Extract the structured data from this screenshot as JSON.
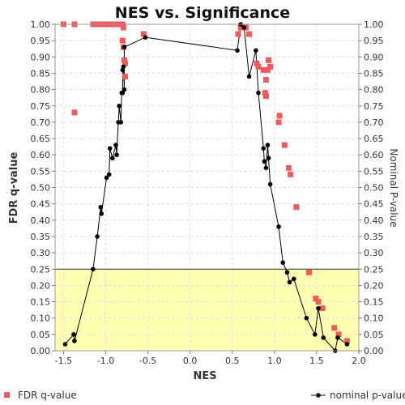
{
  "chart_data": {
    "type": "scatter",
    "title": "NES vs. Significance",
    "xlabel": "NES",
    "ylabel_left": "FDR q-value",
    "ylabel_right": "Nominal P-value",
    "xlim": [
      -1.6,
      2.0
    ],
    "ylim": [
      0.0,
      1.0
    ],
    "x_ticks": [
      "-1.5",
      "-1.0",
      "-0.5",
      "0.0",
      "0.5",
      "1.0",
      "1.5",
      "2.0"
    ],
    "y_ticks": [
      "0.00",
      "0.05",
      "0.10",
      "0.15",
      "0.20",
      "0.25",
      "0.30",
      "0.35",
      "0.40",
      "0.45",
      "0.50",
      "0.55",
      "0.60",
      "0.65",
      "0.70",
      "0.75",
      "0.80",
      "0.85",
      "0.90",
      "0.95",
      "1.00"
    ],
    "grid": true,
    "highlight_band": {
      "y_from": 0.0,
      "y_to": 0.25,
      "color": "#ffffb0",
      "edge_color": "#2e2e2e"
    },
    "legend": [
      {
        "label": "FDR q-value",
        "marker": "square",
        "color": "#f05a5a"
      },
      {
        "label": "nominal p-value",
        "marker": "line-dot",
        "color": "#000000"
      }
    ],
    "series": [
      {
        "name": "FDR q-value",
        "marker": "square",
        "color": "#f05a5a",
        "points": [
          [
            -1.5,
            1.0
          ],
          [
            -1.37,
            1.0
          ],
          [
            -1.37,
            0.73
          ],
          [
            -1.15,
            1.0
          ],
          [
            -1.12,
            1.0
          ],
          [
            -1.08,
            1.0
          ],
          [
            -1.04,
            1.0
          ],
          [
            -1.0,
            1.0
          ],
          [
            -0.96,
            1.0
          ],
          [
            -0.92,
            1.0
          ],
          [
            -0.88,
            1.0
          ],
          [
            -0.84,
            1.0
          ],
          [
            -0.8,
            1.0
          ],
          [
            -0.79,
            0.99
          ],
          [
            -0.8,
            0.95
          ],
          [
            -0.79,
            0.93
          ],
          [
            -0.78,
            0.89
          ],
          [
            -0.77,
            0.88
          ],
          [
            -0.77,
            0.84
          ],
          [
            -0.55,
            0.97
          ],
          [
            0.57,
            0.97
          ],
          [
            0.6,
            0.99
          ],
          [
            0.63,
            0.99
          ],
          [
            0.66,
            0.99
          ],
          [
            0.7,
            0.97
          ],
          [
            0.79,
            0.88
          ],
          [
            0.81,
            0.87
          ],
          [
            0.87,
            0.86
          ],
          [
            0.89,
            0.79
          ],
          [
            0.9,
            0.78
          ],
          [
            0.9,
            0.83
          ],
          [
            0.92,
            0.86
          ],
          [
            0.93,
            0.89
          ],
          [
            0.95,
            0.87
          ],
          [
            1.05,
            0.7
          ],
          [
            1.06,
            0.72
          ],
          [
            1.12,
            0.63
          ],
          [
            1.17,
            0.56
          ],
          [
            1.19,
            0.54
          ],
          [
            1.26,
            0.44
          ],
          [
            1.41,
            0.24
          ],
          [
            1.49,
            0.16
          ],
          [
            1.52,
            0.15
          ],
          [
            1.57,
            0.13
          ],
          [
            1.71,
            0.07
          ],
          [
            1.76,
            0.05
          ],
          [
            1.86,
            0.03
          ]
        ]
      },
      {
        "name": "nominal p-value",
        "marker": "line-dot",
        "color": "#000000",
        "points": [
          [
            -1.48,
            0.02
          ],
          [
            -1.38,
            0.05
          ],
          [
            -1.37,
            0.03
          ],
          [
            -1.15,
            0.25
          ],
          [
            -1.1,
            0.35
          ],
          [
            -1.06,
            0.44
          ],
          [
            -1.05,
            0.42
          ],
          [
            -0.99,
            0.53
          ],
          [
            -0.96,
            0.54
          ],
          [
            -0.95,
            0.62
          ],
          [
            -0.92,
            0.59
          ],
          [
            -0.88,
            0.63
          ],
          [
            -0.87,
            0.6
          ],
          [
            -0.85,
            0.7
          ],
          [
            -0.84,
            0.75
          ],
          [
            -0.82,
            0.7
          ],
          [
            -0.81,
            0.79
          ],
          [
            -0.8,
            0.79
          ],
          [
            -0.8,
            0.86
          ],
          [
            -0.79,
            0.87
          ],
          [
            -0.78,
            0.8
          ],
          [
            -0.78,
            0.93
          ],
          [
            -0.53,
            0.96
          ],
          [
            0.56,
            0.92
          ],
          [
            0.6,
            1.0
          ],
          [
            0.64,
            0.99
          ],
          [
            0.7,
            0.84
          ],
          [
            0.78,
            0.92
          ],
          [
            0.81,
            0.79
          ],
          [
            0.87,
            0.62
          ],
          [
            0.88,
            0.58
          ],
          [
            0.9,
            0.56
          ],
          [
            0.92,
            0.63
          ],
          [
            0.93,
            0.59
          ],
          [
            0.95,
            0.51
          ],
          [
            1.05,
            0.38
          ],
          [
            1.1,
            0.27
          ],
          [
            1.15,
            0.24
          ],
          [
            1.18,
            0.21
          ],
          [
            1.23,
            0.22
          ],
          [
            1.38,
            0.1
          ],
          [
            1.48,
            0.05
          ],
          [
            1.52,
            0.13
          ],
          [
            1.58,
            0.04
          ],
          [
            1.72,
            0.0
          ],
          [
            1.75,
            0.04
          ],
          [
            1.86,
            0.02
          ]
        ]
      }
    ]
  }
}
